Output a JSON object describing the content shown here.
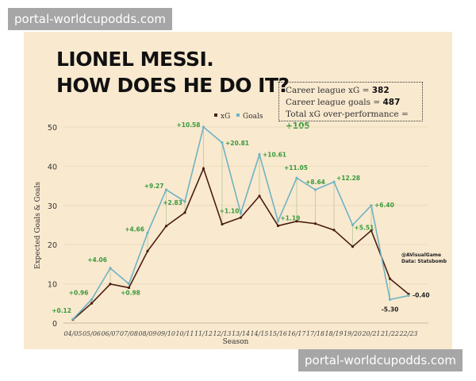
{
  "watermark": {
    "top": "portal-worldcupodds.com",
    "bottom": "portal-worldcupodds.com"
  },
  "stats": {
    "xg_label": "Career league xG = ",
    "xg_value": "382",
    "goals_label": "Career league goals = ",
    "goals_value": "487",
    "over_label": "Total xG over-performance = ",
    "over_value": "+105"
  },
  "chart_data": {
    "type": "line",
    "title_line1": "LIONEL MESSI.",
    "title_line2": "HOW DOES HE DO IT?",
    "xlabel": "Season",
    "ylabel": "Expected Goals & Goals",
    "ylim": [
      0,
      50
    ],
    "yticks": [
      0,
      10,
      20,
      30,
      40,
      50
    ],
    "grid": true,
    "legend_position": "top-center",
    "categories": [
      "04/05",
      "05/06",
      "06/07",
      "07/08",
      "08/09",
      "09/10",
      "10/11",
      "11/12",
      "12/13",
      "13/14",
      "14/15",
      "15/16",
      "16/17",
      "17/18",
      "18/19",
      "19/20",
      "20/21",
      "21/22",
      "22/23"
    ],
    "series": [
      {
        "name": "xG",
        "color": "#4a1e10",
        "values": [
          0.88,
          5.04,
          9.94,
          9.02,
          18.34,
          24.73,
          28.17,
          39.42,
          25.19,
          26.9,
          32.39,
          24.81,
          25.95,
          25.36,
          23.72,
          19.49,
          23.6,
          11.3,
          7.4
        ]
      },
      {
        "name": "Goals",
        "color": "#6fb3c4",
        "values": [
          1,
          6,
          14,
          10,
          23,
          34,
          31,
          50,
          46,
          28,
          43,
          26,
          37,
          34,
          36,
          25,
          30,
          6,
          7
        ]
      }
    ],
    "annotations": [
      "+0.12",
      "+0.96",
      "+4.06",
      "+0.98",
      "+4.66",
      "+9.27",
      "+2.83",
      "+10.58",
      "+20.81",
      "+1.10",
      "+10.61",
      "+1.19",
      "+11.05",
      "+8.64",
      "+12.28",
      "+5.51",
      "+6.40",
      "-5.30",
      "-0.40"
    ],
    "colors": {
      "positive": "#3a9a3a",
      "negative": "#222222"
    },
    "credit": [
      "@AVisualGame",
      "Data: Statsbomb"
    ]
  }
}
